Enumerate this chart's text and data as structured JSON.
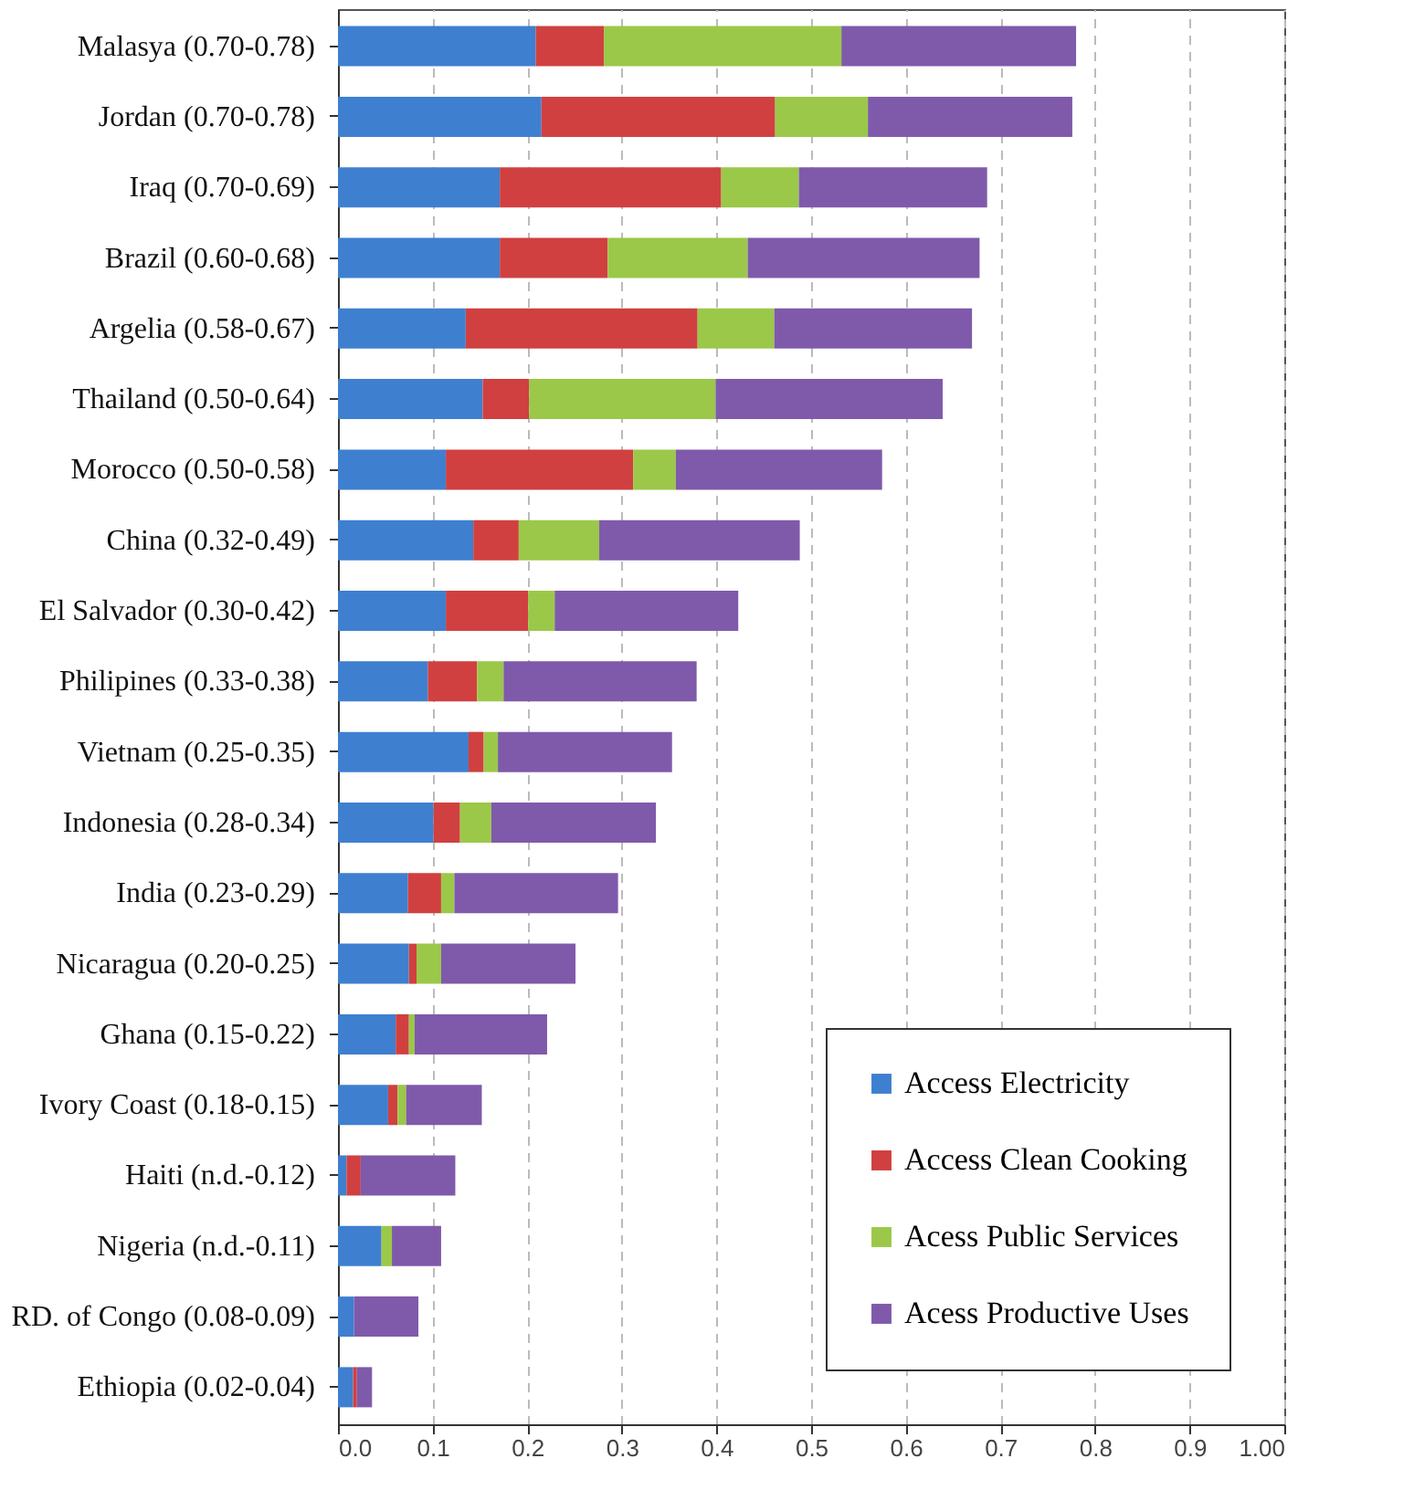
{
  "chart_data": {
    "type": "bar",
    "orientation": "horizontal",
    "stacked": true,
    "categories": [
      "Malasya (0.70-0.78)",
      "Jordan (0.70-0.78)",
      "Iraq (0.70-0.69)",
      "Brazil (0.60-0.68)",
      "Argelia (0.58-0.67)",
      "Thailand (0.50-0.64)",
      "Morocco (0.50-0.58)",
      "China (0.32-0.49)",
      "El Salvador (0.30-0.42)",
      "Philipines (0.33-0.38)",
      "Vietnam (0.25-0.35)",
      "Indonesia (0.28-0.34)",
      "India (0.23-0.29)",
      "Nicaragua (0.20-0.25)",
      "Ghana (0.15-0.22)",
      "Ivory Coast (0.18-0.15)",
      "Haiti (n.d.-0.12)",
      "Nigeria (n.d.-0.11)",
      "RD. of Congo (0.08-0.09)",
      "Ethiopia (0.02-0.04)"
    ],
    "series": [
      {
        "name": "Access Electricity",
        "color": "#3f7fd0",
        "values": [
          0.209,
          0.215,
          0.171,
          0.171,
          0.135,
          0.153,
          0.114,
          0.143,
          0.114,
          0.095,
          0.138,
          0.101,
          0.074,
          0.075,
          0.061,
          0.053,
          0.009,
          0.046,
          0.017,
          0.016
        ]
      },
      {
        "name": "Access Clean Cooking",
        "color": "#d04040",
        "values": [
          0.072,
          0.247,
          0.234,
          0.114,
          0.245,
          0.049,
          0.198,
          0.048,
          0.087,
          0.052,
          0.016,
          0.028,
          0.035,
          0.008,
          0.014,
          0.01,
          0.015,
          0,
          0,
          0.004
        ]
      },
      {
        "name": "Acess Public Services",
        "color": "#9bc848",
        "values": [
          0.251,
          0.098,
          0.082,
          0.148,
          0.081,
          0.197,
          0.045,
          0.085,
          0.028,
          0.028,
          0.015,
          0.033,
          0.014,
          0.026,
          0.006,
          0.009,
          0,
          0.011,
          0,
          0
        ]
      },
      {
        "name": "Acess Productive Uses",
        "color": "#7f5aaa",
        "values": [
          0.248,
          0.216,
          0.199,
          0.245,
          0.209,
          0.24,
          0.218,
          0.212,
          0.194,
          0.204,
          0.184,
          0.174,
          0.173,
          0.142,
          0.14,
          0.08,
          0.1,
          0.052,
          0.068,
          0.016
        ]
      }
    ],
    "xlim": [
      0,
      1
    ],
    "xticks": [
      {
        "value": 0,
        "label": "0.0"
      },
      0.1,
      0.2,
      0.3,
      0.4,
      0.5,
      0.6,
      0.7,
      0.8,
      0.9,
      {
        "value": 1,
        "label": "1.00"
      }
    ],
    "grid": "x",
    "legend": "bottom right"
  }
}
